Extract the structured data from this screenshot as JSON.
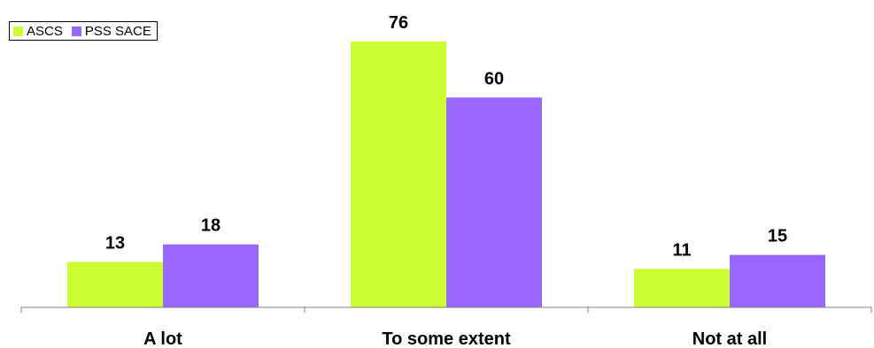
{
  "chart_data": {
    "type": "bar",
    "categories": [
      "A lot",
      "To some extent",
      "Not at all"
    ],
    "series": [
      {
        "name": "ASCS",
        "values": [
          13,
          76,
          11
        ],
        "color": "#ccff33"
      },
      {
        "name": "PSS SACE",
        "values": [
          18,
          60,
          15
        ],
        "color": "#9966ff"
      }
    ],
    "title": "",
    "xlabel": "",
    "ylabel": "",
    "ylim": [
      0,
      80
    ],
    "grid": false,
    "data_labels": true,
    "legend_position": "top-left"
  }
}
